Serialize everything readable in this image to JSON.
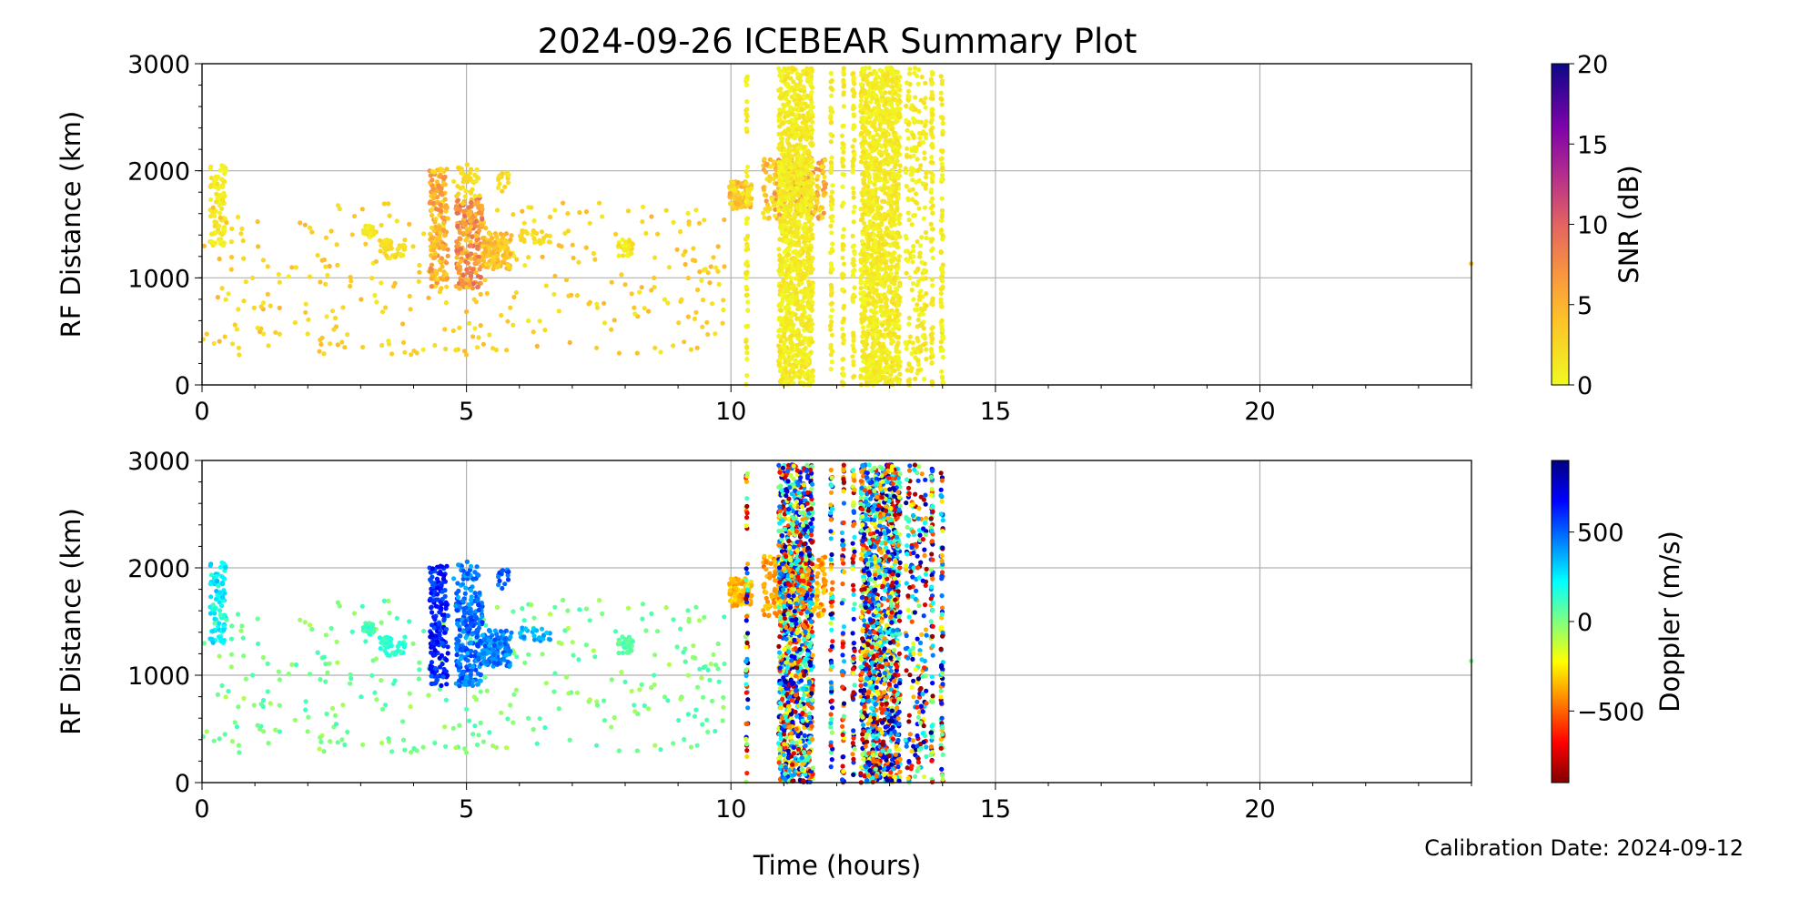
{
  "title": "2024-09-26 ICEBEAR Summary Plot",
  "calibration": "Calibration Date: 2024-09-12",
  "chart_data": [
    {
      "type": "scatter",
      "panel": "top",
      "xlabel": "Time (hours)",
      "ylabel": "RF Distance (km)",
      "xlim": [
        0,
        24
      ],
      "ylim": [
        0,
        3000
      ],
      "xticks": [
        "0",
        "5",
        "10",
        "15",
        "20"
      ],
      "yticks": [
        "0",
        "1000",
        "2000",
        "3000"
      ],
      "grid": true,
      "color_variable": "snr",
      "colorbar": {
        "label": "SNR (dB)",
        "range": [
          0,
          20
        ],
        "ticks": [
          "0",
          "5",
          "10",
          "15",
          "20"
        ],
        "colormap": "plasma_r"
      }
    },
    {
      "type": "scatter",
      "panel": "bottom",
      "xlabel": "Time (hours)",
      "ylabel": "RF Distance (km)",
      "xlim": [
        0,
        24
      ],
      "ylim": [
        0,
        3000
      ],
      "xticks": [
        "0",
        "5",
        "10",
        "15",
        "20"
      ],
      "yticks": [
        "0",
        "1000",
        "2000",
        "3000"
      ],
      "grid": true,
      "color_variable": "doppler",
      "colorbar": {
        "label": "Doppler (m/s)",
        "range": [
          -900,
          900
        ],
        "ticks": [
          "-500",
          "0",
          "500"
        ],
        "tick_labels": [
          "−500",
          "0",
          "500"
        ],
        "colormap": "jet_r"
      }
    }
  ],
  "clusters": [
    {
      "t": [
        0.15,
        0.45
      ],
      "r": [
        1300,
        2060
      ],
      "n": 90,
      "snr": [
        0,
        2
      ],
      "doppler": [
        150,
        350
      ]
    },
    {
      "t": [
        0,
        10
      ],
      "r": [
        280,
        1700
      ],
      "n": 330,
      "snr": [
        1,
        5
      ],
      "doppler": [
        -100,
        120
      ],
      "sparse": true
    },
    {
      "t": [
        3.05,
        3.25
      ],
      "r": [
        1380,
        1500
      ],
      "n": 25,
      "snr": [
        0,
        2
      ],
      "doppler": [
        50,
        150
      ]
    },
    {
      "t": [
        3.35,
        3.85
      ],
      "r": [
        1180,
        1360
      ],
      "n": 45,
      "snr": [
        1,
        3
      ],
      "doppler": [
        80,
        200
      ]
    },
    {
      "t": [
        4.3,
        4.65
      ],
      "r": [
        900,
        2020
      ],
      "n": 170,
      "snr": [
        2,
        8
      ],
      "doppler": [
        500,
        750
      ]
    },
    {
      "t": [
        4.8,
        5.3
      ],
      "r": [
        900,
        1750
      ],
      "n": 220,
      "snr": [
        3,
        10
      ],
      "doppler": [
        350,
        600
      ]
    },
    {
      "t": [
        4.75,
        5.25
      ],
      "r": [
        1750,
        2060
      ],
      "n": 40,
      "snr": [
        1,
        3
      ],
      "doppler": [
        350,
        550
      ]
    },
    {
      "t": [
        5.3,
        5.85
      ],
      "r": [
        1080,
        1420
      ],
      "n": 130,
      "snr": [
        2,
        6
      ],
      "doppler": [
        350,
        550
      ]
    },
    {
      "t": [
        5.6,
        5.8
      ],
      "r": [
        1800,
        2000
      ],
      "n": 18,
      "snr": [
        1,
        3
      ],
      "doppler": [
        400,
        600
      ]
    },
    {
      "t": [
        6.0,
        6.6
      ],
      "r": [
        1300,
        1450
      ],
      "n": 25,
      "snr": [
        1,
        3
      ],
      "doppler": [
        300,
        450
      ]
    },
    {
      "t": [
        7.85,
        8.15
      ],
      "r": [
        1200,
        1360
      ],
      "n": 30,
      "snr": [
        0,
        3
      ],
      "doppler": [
        0,
        120
      ]
    },
    {
      "t": [
        9.95,
        10.4
      ],
      "r": [
        1640,
        1900
      ],
      "n": 120,
      "snr": [
        1,
        6
      ],
      "doppler": [
        -450,
        -250
      ]
    },
    {
      "t": [
        10.6,
        11.8
      ],
      "r": [
        1550,
        2120
      ],
      "n": 260,
      "snr": [
        1,
        8
      ],
      "doppler": [
        -500,
        -250
      ]
    },
    {
      "t": [
        10.9,
        11.55
      ],
      "r": [
        0,
        2960
      ],
      "n": 1200,
      "snr": [
        0,
        2
      ],
      "doppler": [
        -900,
        900
      ],
      "noise": true
    },
    {
      "t": [
        12.45,
        13.2
      ],
      "r": [
        0,
        2960
      ],
      "n": 1300,
      "snr": [
        0,
        2
      ],
      "doppler": [
        -900,
        900
      ],
      "noise": true
    },
    {
      "t": [
        10.28,
        10.32
      ],
      "r": [
        0,
        2960
      ],
      "n": 60,
      "snr": [
        0,
        2
      ],
      "doppler": [
        -900,
        900
      ],
      "noise": true
    },
    {
      "t": [
        11.88,
        11.92
      ],
      "r": [
        0,
        2960
      ],
      "n": 70,
      "snr": [
        0,
        2
      ],
      "doppler": [
        -900,
        900
      ],
      "noise": true
    },
    {
      "t": [
        12.1,
        12.14
      ],
      "r": [
        0,
        2960
      ],
      "n": 70,
      "snr": [
        0,
        2
      ],
      "doppler": [
        -900,
        900
      ],
      "noise": true
    },
    {
      "t": [
        12.3,
        12.34
      ],
      "r": [
        0,
        2960
      ],
      "n": 70,
      "snr": [
        0,
        2
      ],
      "doppler": [
        -900,
        900
      ],
      "noise": true
    },
    {
      "t": [
        13.3,
        13.7
      ],
      "r": [
        0,
        2960
      ],
      "n": 220,
      "snr": [
        0,
        2
      ],
      "doppler": [
        -900,
        900
      ],
      "noise": true
    },
    {
      "t": [
        13.78,
        13.82
      ],
      "r": [
        0,
        2960
      ],
      "n": 80,
      "snr": [
        0,
        2
      ],
      "doppler": [
        -900,
        900
      ],
      "noise": true
    },
    {
      "t": [
        13.97,
        14.01
      ],
      "r": [
        0,
        2900
      ],
      "n": 80,
      "snr": [
        0,
        2
      ],
      "doppler": [
        -900,
        900
      ],
      "noise": true
    },
    {
      "t": [
        23.98,
        24.0
      ],
      "r": [
        1120,
        1140
      ],
      "n": 1,
      "snr": [
        3,
        4
      ],
      "doppler": [
        0,
        50
      ]
    }
  ]
}
